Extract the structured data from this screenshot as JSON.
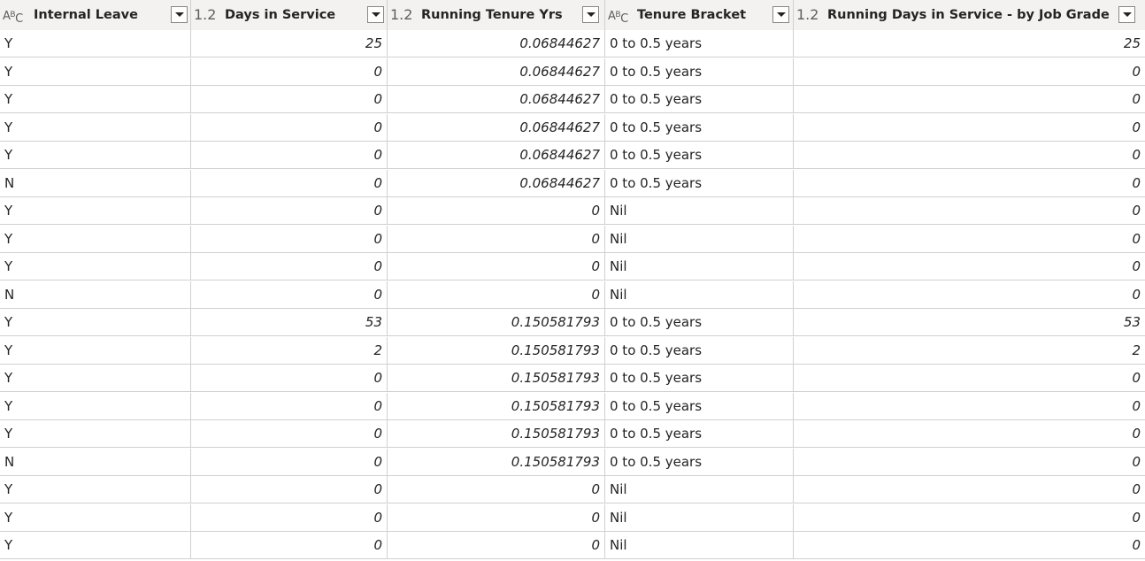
{
  "columns": [
    {
      "type_label": "ABC",
      "name": "Internal Leave"
    },
    {
      "type_label": "1.2",
      "name": "Days in Service"
    },
    {
      "type_label": "1.2",
      "name": "Running Tenure Yrs"
    },
    {
      "type_label": "ABC",
      "name": "Tenure Bracket"
    },
    {
      "type_label": "1.2",
      "name": "Running Days in Service - by Job Grade"
    }
  ],
  "rows": [
    [
      "Y",
      "25",
      "0.06844627",
      "0 to 0.5 years",
      "25"
    ],
    [
      "Y",
      "0",
      "0.06844627",
      "0 to 0.5 years",
      "0"
    ],
    [
      "Y",
      "0",
      "0.06844627",
      "0 to 0.5 years",
      "0"
    ],
    [
      "Y",
      "0",
      "0.06844627",
      "0 to 0.5 years",
      "0"
    ],
    [
      "Y",
      "0",
      "0.06844627",
      "0 to 0.5 years",
      "0"
    ],
    [
      "N",
      "0",
      "0.06844627",
      "0 to 0.5 years",
      "0"
    ],
    [
      "Y",
      "0",
      "0",
      "Nil",
      "0"
    ],
    [
      "Y",
      "0",
      "0",
      "Nil",
      "0"
    ],
    [
      "Y",
      "0",
      "0",
      "Nil",
      "0"
    ],
    [
      "N",
      "0",
      "0",
      "Nil",
      "0"
    ],
    [
      "Y",
      "53",
      "0.150581793",
      "0 to 0.5 years",
      "53"
    ],
    [
      "Y",
      "2",
      "0.150581793",
      "0 to 0.5 years",
      "2"
    ],
    [
      "Y",
      "0",
      "0.150581793",
      "0 to 0.5 years",
      "0"
    ],
    [
      "Y",
      "0",
      "0.150581793",
      "0 to 0.5 years",
      "0"
    ],
    [
      "Y",
      "0",
      "0.150581793",
      "0 to 0.5 years",
      "0"
    ],
    [
      "N",
      "0",
      "0.150581793",
      "0 to 0.5 years",
      "0"
    ],
    [
      "Y",
      "0",
      "0",
      "Nil",
      "0"
    ],
    [
      "Y",
      "0",
      "0",
      "Nil",
      "0"
    ],
    [
      "Y",
      "0",
      "0",
      "Nil",
      "0"
    ]
  ]
}
